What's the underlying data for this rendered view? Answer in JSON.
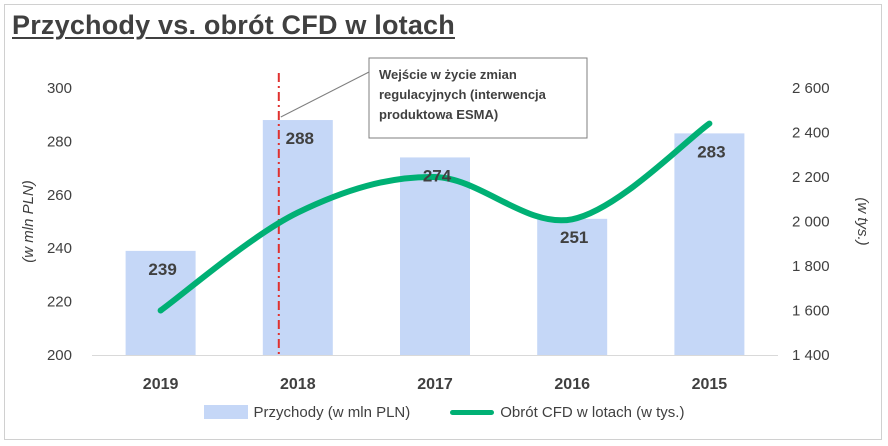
{
  "chart_data": {
    "type": "bar",
    "title": "Przychody vs. obrót CFD w lotach",
    "categories": [
      "2019",
      "2018",
      "2017",
      "2016",
      "2015"
    ],
    "series": [
      {
        "name": "Przychody (w mln PLN)",
        "type": "bar",
        "axis": "left",
        "values": [
          239,
          288,
          274,
          251,
          283
        ],
        "data_labels": [
          "239",
          "288",
          "274",
          "251",
          "283"
        ]
      },
      {
        "name": "Obrót CFD w lotach (w tys.)",
        "type": "line",
        "axis": "right",
        "smooth": true,
        "values": [
          1600,
          2040,
          2200,
          2010,
          2440
        ]
      }
    ],
    "y_left": {
      "label": "(w mln PLN)",
      "range": [
        200,
        300
      ],
      "ticks": [
        "200",
        "220",
        "240",
        "260",
        "280",
        "300"
      ]
    },
    "y_right": {
      "label": "(w tys.)",
      "range": [
        1400,
        2600
      ],
      "ticks": [
        "1 400",
        "1 600",
        "1 800",
        "2 000",
        "2 200",
        "2 400",
        "2 600"
      ]
    },
    "annotation": {
      "text_lines": [
        "Wejście w życie zmian",
        "regulacyjnych  (interwencja",
        "produktowa ESMA)"
      ],
      "marker_category": "2018",
      "marker_style": "dash-dot"
    },
    "grid": false,
    "legend_position": "bottom",
    "colors": {
      "bar": "#c5d7f7",
      "line": "#00b074",
      "marker": "#e0312f",
      "text": "#404040",
      "axis": "#d9d9d9"
    }
  }
}
